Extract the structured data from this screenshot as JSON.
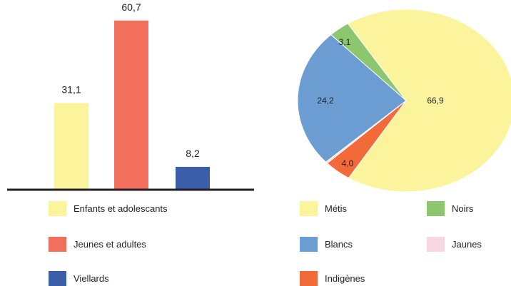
{
  "chart_data": [
    {
      "type": "bar",
      "categories": [
        "Enfants et adolescants",
        "Jeunes et adultes",
        "Viellards"
      ],
      "values": [
        31.1,
        60.7,
        8.2
      ],
      "value_labels": [
        "31,1",
        "60,7",
        "8,2"
      ],
      "colors": [
        "#fbf49c",
        "#f26f5e",
        "#3a5ea8"
      ],
      "legend": [
        {
          "label": "Enfants et adolescants",
          "color": "#fbf49c"
        },
        {
          "label": "Jeunes et adultes",
          "color": "#f26f5e"
        },
        {
          "label": "Viellards",
          "color": "#3a5ea8"
        }
      ],
      "ylim": [
        0,
        65
      ],
      "grid": false,
      "legend_position": "bottom"
    },
    {
      "type": "pie",
      "slices": [
        {
          "label": "Métis",
          "value": 66.9,
          "value_label": "66,9",
          "color": "#fbf49c"
        },
        {
          "label": "Indigènes",
          "value": 4.0,
          "value_label": "4,0",
          "color": "#f36a3a"
        },
        {
          "label": "Jaunes",
          "value": 0.3,
          "value_label": "",
          "color": "#f8d7e3"
        },
        {
          "label": "Blancs",
          "value": 24.2,
          "value_label": "24,2",
          "color": "#6b9dd3"
        },
        {
          "label": "Noirs",
          "value": 3.1,
          "value_label": "3,1",
          "color": "#8cc66e"
        }
      ],
      "legend": [
        {
          "label": "Métis",
          "color": "#fbf49c"
        },
        {
          "label": "Noirs",
          "color": "#8cc66e"
        },
        {
          "label": "Blancs",
          "color": "#6b9dd3"
        },
        {
          "label": "Jaunes",
          "color": "#f8d7e3"
        },
        {
          "label": "Indigènes",
          "color": "#f36a3a"
        }
      ],
      "legend_position": "bottom"
    }
  ]
}
